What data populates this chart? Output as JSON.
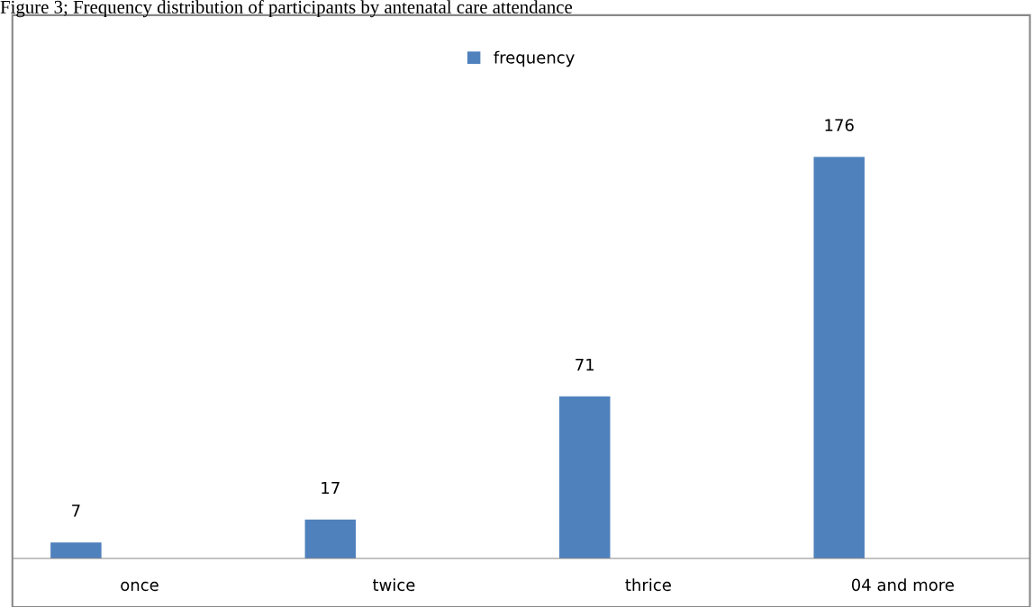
{
  "chart_data": {
    "type": "bar",
    "title": "Figure 3; Frequency distribution of participants by antenatal care attendance",
    "categories": [
      "once",
      "twice",
      "thrice",
      "04 and more"
    ],
    "series": [
      {
        "name": "frequency",
        "color": "#4f81bd",
        "values": [
          7,
          17,
          71,
          176
        ]
      }
    ],
    "data_labels": true,
    "legend": "top",
    "grid": false
  }
}
